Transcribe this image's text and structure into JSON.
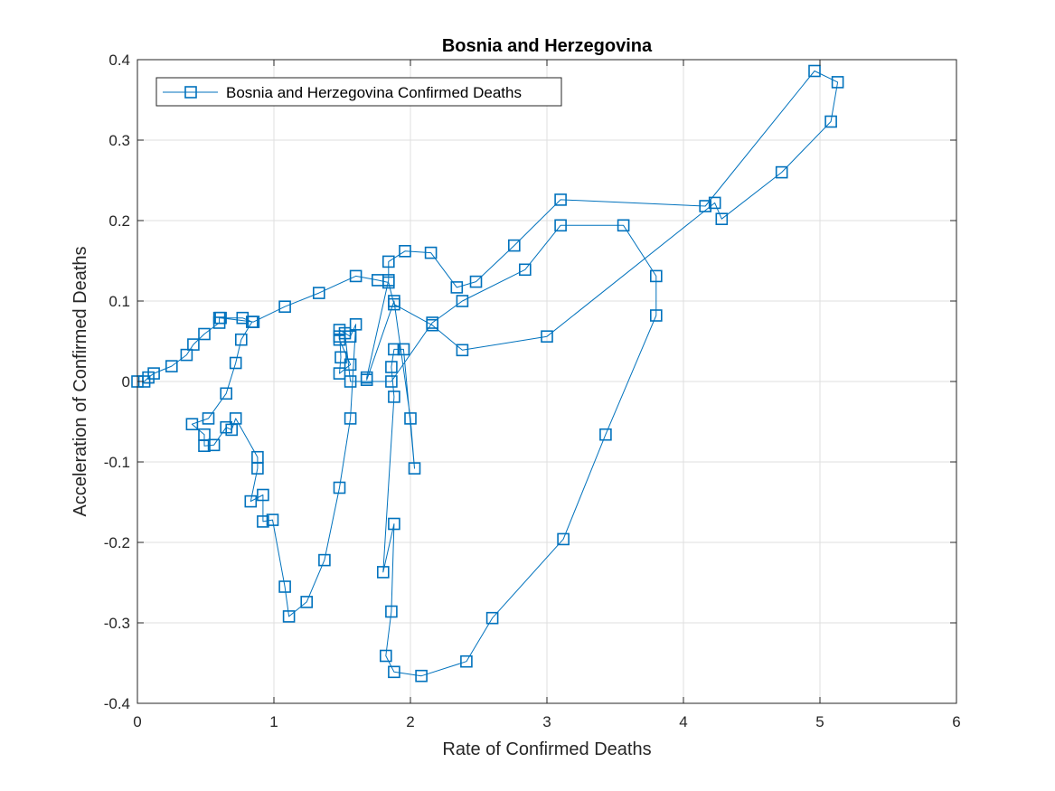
{
  "chart_data": {
    "type": "line",
    "title": "Bosnia and Herzegovina",
    "xlabel": "Rate of Confirmed Deaths",
    "ylabel": "Acceleration of Confirmed Deaths",
    "xlim": [
      0,
      6
    ],
    "ylim": [
      -0.4,
      0.4
    ],
    "xticks": [
      0,
      1,
      2,
      3,
      4,
      5,
      6
    ],
    "yticks": [
      -0.4,
      -0.3,
      -0.2,
      -0.1,
      0,
      0.1,
      0.2,
      0.3,
      0.4
    ],
    "xtick_labels": [
      "0",
      "1",
      "2",
      "3",
      "4",
      "5",
      "6"
    ],
    "ytick_labels": [
      "-0.4",
      "-0.3",
      "-0.2",
      "-0.1",
      "0",
      "0.1",
      "0.2",
      "0.3",
      "0.4"
    ],
    "grid": true,
    "legend_position": "top-left",
    "colors": {
      "series": "#0072bd",
      "grid": "#dfdfdf",
      "axis": "#262626"
    },
    "series": [
      {
        "name": "Bosnia and Herzegovina Confirmed Deaths",
        "marker": "square",
        "x": [
          0,
          0.05,
          0.08,
          0.12,
          0.25,
          0.36,
          0.41,
          0.49,
          0.6,
          0.6,
          0.77,
          0.84,
          0.76,
          0.72,
          0.65,
          0.52,
          0.4,
          0.49,
          0.49,
          0.56,
          0.65,
          0.69,
          0.72,
          0.88,
          0.88,
          0.83,
          0.92,
          0.92,
          0.99,
          1.08,
          1.11,
          1.24,
          1.37,
          1.48,
          1.56,
          1.6,
          1.56,
          1.48,
          1.49,
          1.48,
          1.56,
          1.48,
          1.48,
          1.52,
          1.56,
          1.86,
          2.16,
          2.38,
          2.84,
          3.1,
          3.56,
          3.8,
          3.8,
          3.43,
          3.12,
          2.6,
          2.41,
          2.08,
          1.88,
          1.82,
          1.86,
          1.88,
          1.8,
          1.88,
          1.86,
          1.88,
          1.95,
          2.03,
          2.0,
          1.88,
          1.68,
          1.68,
          1.84,
          1.84,
          1.96,
          2.15,
          2.34,
          2.48,
          2.76,
          3.1,
          4.16,
          4.96,
          5.13,
          5.08,
          4.72,
          4.28,
          4.23,
          3.0,
          2.38,
          2.16,
          1.88,
          1.84,
          1.76,
          1.6,
          1.33,
          1.08,
          0.85,
          0.61
        ],
        "y": [
          0,
          0,
          0.005,
          0.01,
          0.019,
          0.033,
          0.046,
          0.059,
          0.073,
          0.079,
          0.079,
          0.074,
          0.052,
          0.023,
          -0.015,
          -0.046,
          -0.053,
          -0.066,
          -0.08,
          -0.079,
          -0.057,
          -0.06,
          -0.046,
          -0.094,
          -0.108,
          -0.149,
          -0.141,
          -0.174,
          -0.172,
          -0.255,
          -0.292,
          -0.274,
          -0.222,
          -0.132,
          -0.046,
          0.071,
          0.056,
          0.064,
          0.03,
          0.01,
          0.021,
          0.052,
          0.056,
          0.06,
          0,
          0,
          0.073,
          0.1,
          0.139,
          0.194,
          0.194,
          0.131,
          0.082,
          -0.066,
          -0.196,
          -0.294,
          -0.348,
          -0.366,
          -0.361,
          -0.341,
          -0.286,
          -0.177,
          -0.237,
          -0.019,
          0.018,
          0.04,
          0.04,
          -0.108,
          -0.046,
          0.1,
          0.002,
          0.005,
          0.126,
          0.149,
          0.162,
          0.16,
          0.117,
          0.124,
          0.169,
          0.226,
          0.218,
          0.386,
          0.372,
          0.323,
          0.26,
          0.202,
          0.222,
          0.056,
          0.039,
          0.07,
          0.096,
          0.123,
          0.126,
          0.131,
          0.11,
          0.093,
          0.074,
          0.079
        ]
      }
    ]
  }
}
